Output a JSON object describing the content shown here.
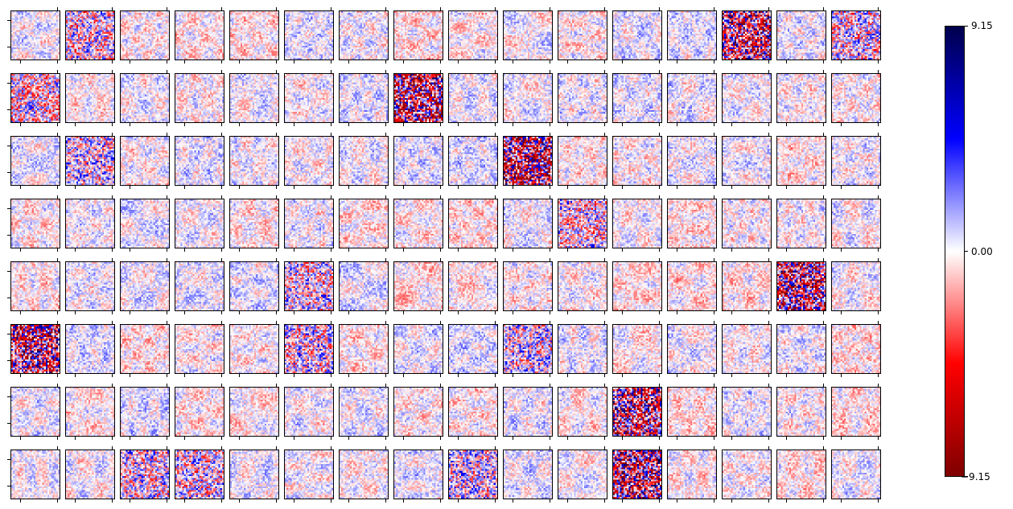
{
  "chart_data": {
    "type": "heatmap",
    "title": "",
    "grid": {
      "rows": 8,
      "cols": 16,
      "image_size": [
        28,
        28
      ]
    },
    "colormap": "seismic_r",
    "colors": {
      "min": "#7f0000",
      "low": "#ff0000",
      "mid": "#ffffff",
      "high": "#0000ff",
      "max": "#00004c"
    },
    "colorbar": {
      "min": -9.15,
      "max": 9.15,
      "ticks": [
        {
          "value": 9.15,
          "label": "9.15"
        },
        {
          "value": 0.0,
          "label": "0.00"
        },
        {
          "value": -9.15,
          "label": "−9.15"
        }
      ]
    },
    "noisy_panels": [
      [
        0,
        1
      ],
      [
        0,
        13
      ],
      [
        0,
        15
      ],
      [
        1,
        0
      ],
      [
        1,
        7
      ],
      [
        2,
        1
      ],
      [
        2,
        9
      ],
      [
        3,
        10
      ],
      [
        4,
        5
      ],
      [
        4,
        14
      ],
      [
        5,
        0
      ],
      [
        5,
        5
      ],
      [
        5,
        9
      ],
      [
        7,
        2
      ],
      [
        7,
        3
      ],
      [
        7,
        8
      ],
      [
        7,
        11
      ],
      [
        6,
        11
      ]
    ],
    "strong_panels": [
      [
        1,
        7
      ],
      [
        2,
        9
      ],
      [
        0,
        13
      ],
      [
        5,
        0
      ],
      [
        6,
        11
      ],
      [
        7,
        11
      ],
      [
        4,
        14
      ]
    ]
  }
}
